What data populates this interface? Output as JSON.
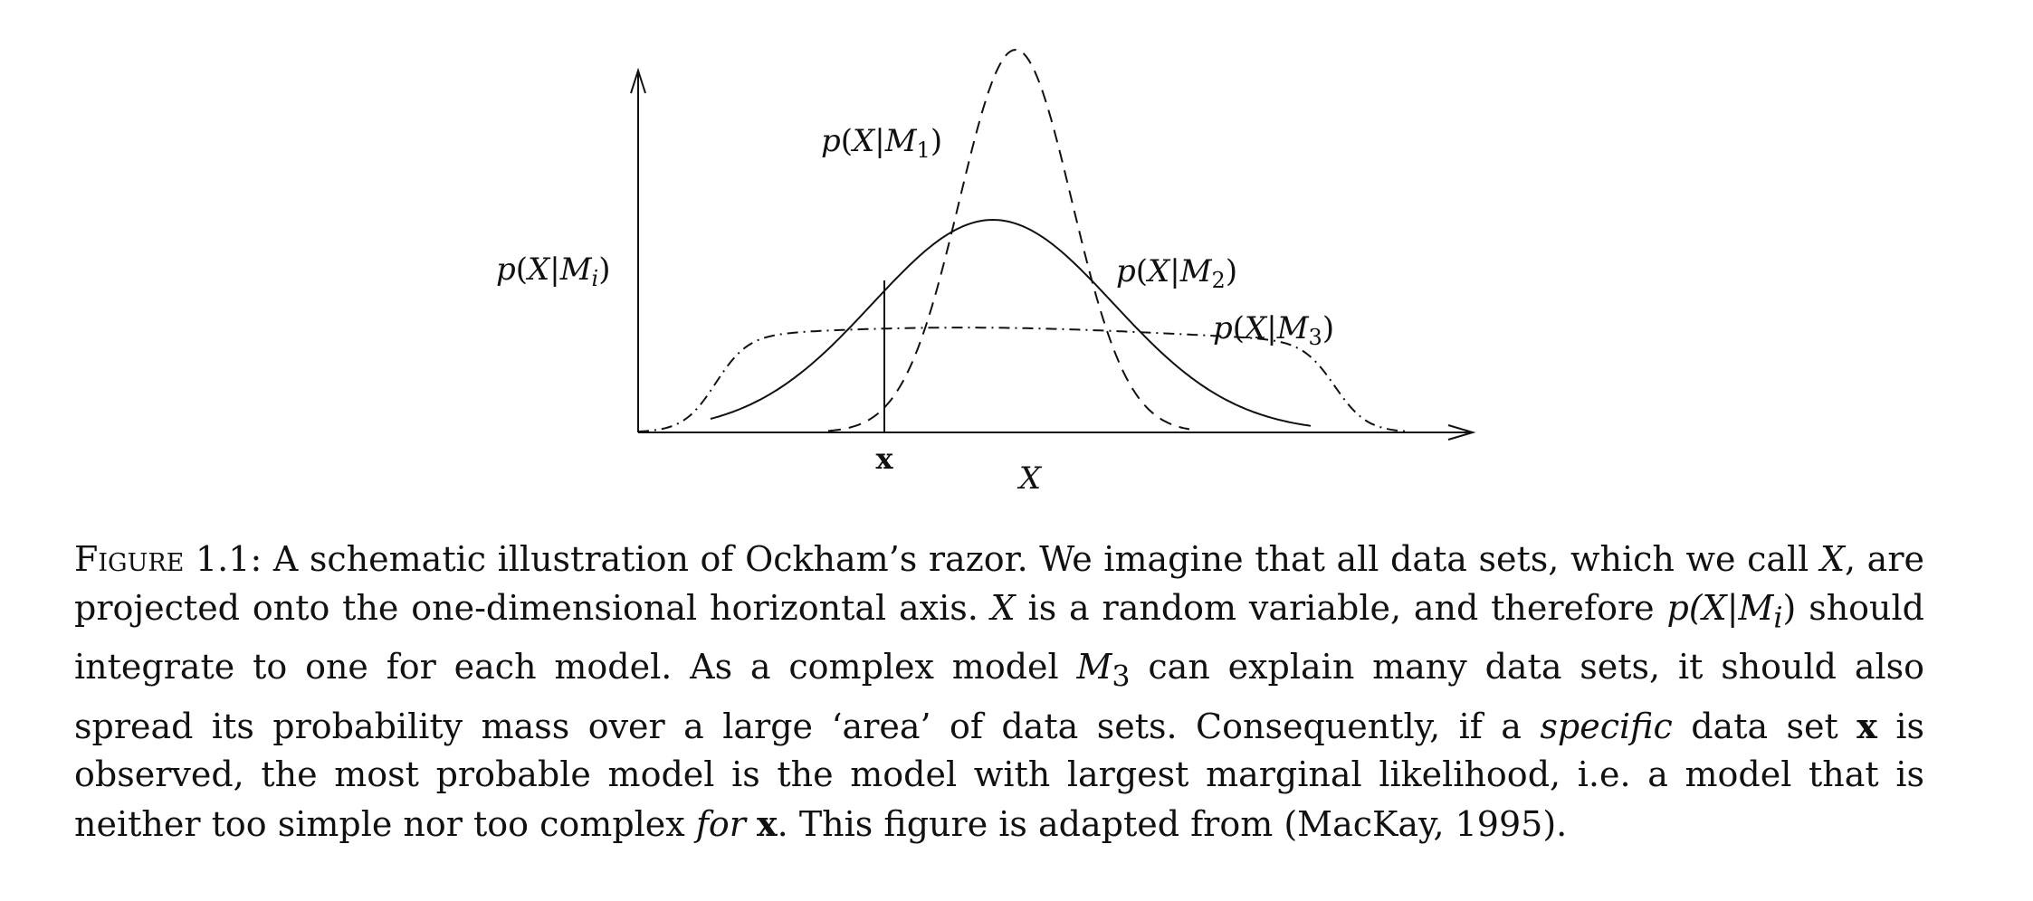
{
  "figure": {
    "y_axis_label": {
      "p": "p",
      "open": "(",
      "X": "X",
      "bar": "|",
      "M": "M",
      "sub": "i",
      "close": ")"
    },
    "curve_labels": [
      {
        "p": "p",
        "open": "(",
        "X": "X",
        "bar": "|",
        "M": "M",
        "sub": "1",
        "close": ")"
      },
      {
        "p": "p",
        "open": "(",
        "X": "X",
        "bar": "|",
        "M": "M",
        "sub": "2",
        "close": ")"
      },
      {
        "p": "p",
        "open": "(",
        "X": "X",
        "bar": "|",
        "M": "M",
        "sub": "3",
        "close": ")"
      }
    ],
    "x_marker_label": "x",
    "x_axis_label": "X"
  },
  "caption": {
    "label": "Figure",
    "number": " 1.1: ",
    "t1": "A schematic illustration of Ockham’s razor. We imagine that all data sets, which we call ",
    "t1_sym": "X",
    "t2": ", are projected onto the one-dimensional horizontal axis. ",
    "t2_sym": "X",
    "t3": " is a random variable, and therefore ",
    "t3_math": "p(X|M",
    "t3_sub": "i",
    "t3_close": ")",
    "t4": " should integrate to one for each model. As a complex model ",
    "t4_sym": "M",
    "t4_sub": "3",
    "t5": " can explain many data sets, it should also spread its probability mass over a large ‘area’ of data sets. Consequently, if a ",
    "t5_em": "specific",
    "t6": " data set ",
    "t6_bf": "x",
    "t7": " is observed, the most probable model is the model with largest marginal likelihood, i.e. a model that is neither too simple nor too complex ",
    "t7_em": "for",
    "t8": " ",
    "t8_bf": "x",
    "t9": ". This figure is adapted from (MacKay, 1995)."
  }
}
